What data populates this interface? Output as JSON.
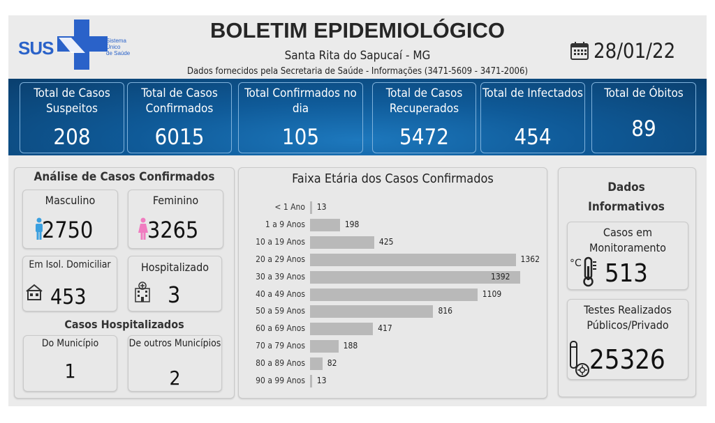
{
  "header": {
    "logo_text": "SUS",
    "logo_subtext": [
      "Sistema",
      "Único",
      "de Saúde"
    ],
    "title": "BOLETIM EPIDEMIOLÓGICO",
    "subtitle": "Santa Rita do Sapucaí - MG",
    "source": "Dados fornecidos pela Secretaria de Saúde - Informações (3471-5609 - 3471-2006)",
    "date": "28/01/22",
    "date_icon": "calendar-icon"
  },
  "totals": [
    {
      "label": "Total de Casos Suspeitos",
      "value": "208"
    },
    {
      "label": "Total de Casos Confirmados",
      "value": "6015"
    },
    {
      "label": "Total Confirmados no dia",
      "value": "105"
    },
    {
      "label": "Total de Casos Recuperados",
      "value": "5472"
    },
    {
      "label": "Total de Infectados",
      "value": "454"
    },
    {
      "label": "Total de Óbitos",
      "value": "89"
    }
  ],
  "analysis": {
    "title": "Análise de Casos Confirmados",
    "male_label": "Masculino",
    "male_value": "2750",
    "female_label": "Feminino",
    "female_value": "3265",
    "home_label": "Em Isol. Domiciliar",
    "home_value": "453",
    "hosp_label": "Hospitalizado",
    "hosp_value": "3",
    "hosp_title": "Casos Hospitalizados",
    "local_label": "Do Município",
    "local_value": "1",
    "other_label": "De outros Municípios",
    "other_value": "2"
  },
  "chart_data": {
    "type": "bar",
    "orientation": "horizontal",
    "title": "Faixa Etária dos Casos Confirmados",
    "categories": [
      "< 1 Ano",
      "1 a 9 Anos",
      "10 a 19 Anos",
      "20 a 29 Anos",
      "30 a 39 Anos",
      "40 a 49 Anos",
      "50 a 59 Anos",
      "60 a 69 Anos",
      "70 a 79 Anos",
      "80 a 89 Anos",
      "90 a 99 Anos"
    ],
    "values": [
      13,
      198,
      425,
      1362,
      1392,
      1109,
      816,
      417,
      188,
      82,
      13
    ],
    "bar_color": "#b9b9b9"
  },
  "info": {
    "title": "Dados Informativos",
    "monitor_label": "Casos em Monitoramento",
    "monitor_value": "513",
    "tests_label": "Testes Realizados Públicos/Privado",
    "tests_value": "25326"
  },
  "colors": {
    "brand_blue": "#2a62c9",
    "band": "#0f5a98",
    "male": "#3aa0e0",
    "female": "#f07cc0"
  }
}
